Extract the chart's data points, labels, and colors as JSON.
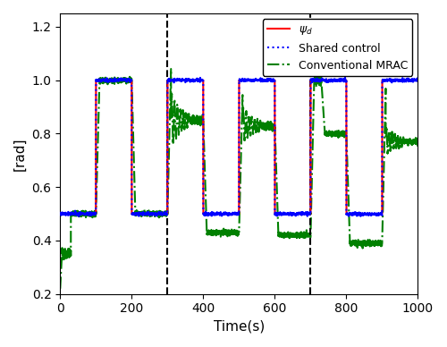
{
  "title": "",
  "xlabel": "Time(s)",
  "ylabel": "[rad]",
  "xlim": [
    0,
    1000
  ],
  "ylim": [
    0.2,
    1.25
  ],
  "yticks": [
    0.2,
    0.4,
    0.6,
    0.8,
    1.0,
    1.2
  ],
  "xticks": [
    0,
    200,
    400,
    600,
    800,
    1000
  ],
  "dashed_vlines": [
    300,
    700
  ],
  "psi_d_color": "#ff0000",
  "shared_color": "#0000ff",
  "mrac_color": "#008000",
  "legend_labels": [
    "ψ_d",
    "Shared control",
    "Conventional MRAC"
  ],
  "figsize": [
    5.0,
    3.88
  ],
  "dpi": 100
}
